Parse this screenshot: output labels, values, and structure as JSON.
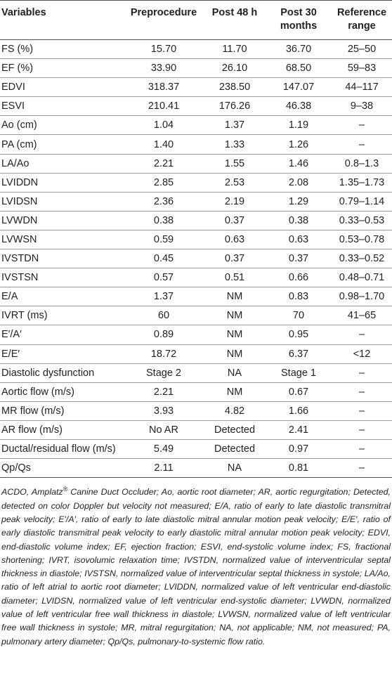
{
  "table": {
    "headers": [
      "Variables",
      "Preprocedure",
      "Post 48 h",
      "Post 30 months",
      "Reference range"
    ],
    "rows": [
      [
        "FS (%)",
        "15.70",
        "11.70",
        "36.70",
        "25–50"
      ],
      [
        "EF (%)",
        "33.90",
        "26.10",
        "68.50",
        "59–83"
      ],
      [
        "EDVI",
        "318.37",
        "238.50",
        "147.07",
        "44–117"
      ],
      [
        "ESVI",
        "210.41",
        "176.26",
        "46.38",
        "9–38"
      ],
      [
        "Ao (cm)",
        "1.04",
        "1.37",
        "1.19",
        "–"
      ],
      [
        "PA (cm)",
        "1.40",
        "1.33",
        "1.26",
        "–"
      ],
      [
        "LA/Ao",
        "2.21",
        "1.55",
        "1.46",
        "0.8–1.3"
      ],
      [
        "LVIDDN",
        "2.85",
        "2.53",
        "2.08",
        "1.35–1.73"
      ],
      [
        "LVIDSN",
        "2.36",
        "2.19",
        "1.29",
        "0.79–1.14"
      ],
      [
        "LVWDN",
        "0.38",
        "0.37",
        "0.38",
        "0.33–0.53"
      ],
      [
        "LVWSN",
        "0.59",
        "0.63",
        "0.63",
        "0.53–0.78"
      ],
      [
        "IVSTDN",
        "0.45",
        "0.37",
        "0.37",
        "0.33–0.52"
      ],
      [
        "IVSTSN",
        "0.57",
        "0.51",
        "0.66",
        "0.48–0.71"
      ],
      [
        "E/A",
        "1.37",
        "NM",
        "0.83",
        "0.98–1.70"
      ],
      [
        "IVRT (ms)",
        "60",
        "NM",
        "70",
        "41–65"
      ],
      [
        "E′/A′",
        "0.89",
        "NM",
        "0.95",
        "–"
      ],
      [
        "E/E′",
        "18.72",
        "NM",
        "6.37",
        "<12"
      ],
      [
        "Diastolic dysfunction",
        "Stage 2",
        "NA",
        "Stage 1",
        "–"
      ],
      [
        "Aortic flow (m/s)",
        "2.21",
        "NM",
        "0.67",
        "–"
      ],
      [
        "MR flow (m/s)",
        "3.93",
        "4.82",
        "1.66",
        "–"
      ],
      [
        "AR flow (m/s)",
        "No AR",
        "Detected",
        "2.41",
        "–"
      ],
      [
        "Ductal/residual flow (m/s)",
        "5.49",
        "Detected",
        "0.97",
        "–"
      ],
      [
        "Qp/Qs",
        "2.11",
        "NA",
        "0.81",
        "–"
      ]
    ]
  },
  "footnote": {
    "lead": "ACDO, Amplatz",
    "sup": "®",
    "rest": " Canine Duct Occluder; Ao, aortic root diameter; AR, aortic regurgitation; Detected, detected on color Doppler but velocity not measured; E/A, ratio of early to late diastolic transmitral peak velocity; E′/A′, ratio of early to late diastolic mitral annular motion peak velocity; E/E′, ratio of early diastolic transmitral peak velocity to early diastolic mitral annular motion peak velocity; EDVI, end-diastolic volume index; EF, ejection fraction; ESVI, end-systolic volume index; FS, fractional shortening; IVRT, isovolumic relaxation time; IVSTDN, normalized value of interventricular septal thickness in diastole; IVSTSN, normalized value of interventricular septal thickness in systole; LA/Ao, ratio of left atrial to aortic root diameter; LVIDDN, normalized value of left ventricular end-diastolic diameter; LVIDSN, normalized value of left ventricular end-systolic diameter; LVWDN, normalized value of left ventricular free wall thickness in diastole; LVWSN, normalized value of left ventricular free wall thickness in systole; MR, mitral regurgitation; NA, not applicable; NM, not measured; PA, pulmonary artery diameter; Qp/Qs, pulmonary-to-systemic flow ratio."
  }
}
